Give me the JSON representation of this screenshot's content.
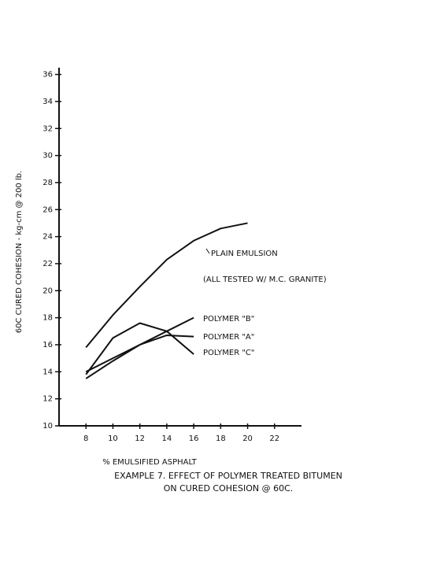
{
  "chart_data": {
    "type": "line",
    "title_lines": [
      "EXAMPLE 7. EFFECT OF POLYMER TREATED BITUMEN",
      "ON CURED COHESION @ 60C."
    ],
    "x_label": "% EMULSIFIED ASPHALT",
    "y_label": "60C CURED COHESION - kg-cm @ 200 lb.",
    "annotations": [
      "PLAIN EMULSION",
      "(ALL TESTED W/ M.C. GRANITE)"
    ],
    "x": [
      8,
      10,
      12,
      14,
      16,
      18,
      20
    ],
    "series": [
      {
        "name": "PLAIN EMULSION",
        "color": "#111111",
        "values": [
          15.8,
          18.2,
          20.3,
          22.3,
          23.7,
          24.6,
          25
        ]
      },
      {
        "name": "POLYMER \"B\"",
        "color": "#111111",
        "values": [
          14,
          15,
          16,
          17,
          18,
          null,
          null
        ]
      },
      {
        "name": "POLYMER \"A\"",
        "color": "#111111",
        "values": [
          13.5,
          14.8,
          16,
          16.7,
          16.6,
          null,
          null
        ]
      },
      {
        "name": "POLYMER \"C\"",
        "color": "#111111",
        "values": [
          13.8,
          16.5,
          17.6,
          17,
          15.3,
          null,
          null
        ]
      }
    ],
    "xlim": [
      6,
      24
    ],
    "ylim": [
      10,
      36.5
    ],
    "xticks": [
      8,
      10,
      12,
      14,
      16,
      18,
      20,
      22
    ],
    "yticks": [
      10,
      12,
      14,
      16,
      18,
      20,
      22,
      24,
      26,
      28,
      30,
      32,
      34,
      36
    ]
  }
}
